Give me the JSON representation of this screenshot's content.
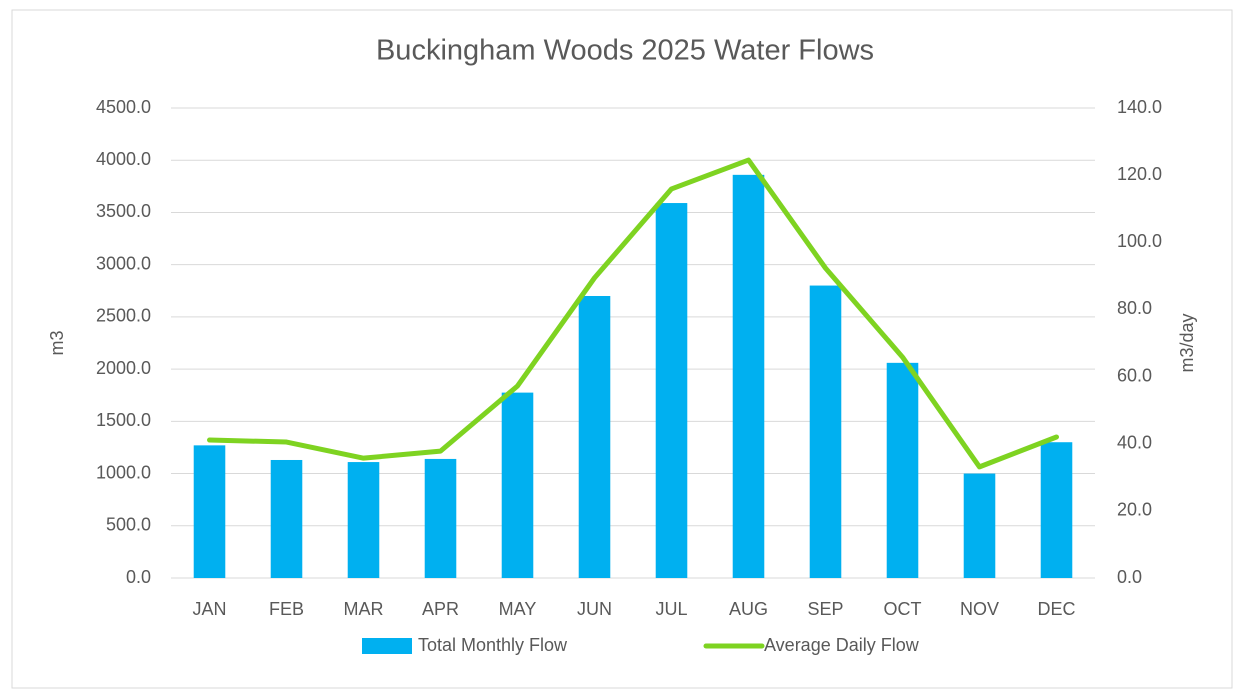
{
  "chart_data": {
    "type": "bar_line",
    "title": "Buckingham Woods 2025 Water Flows",
    "y_label": "m3",
    "y2_label": "m3/day",
    "categories": [
      "JAN",
      "FEB",
      "MAR",
      "APR",
      "MAY",
      "JUN",
      "JUL",
      "AUG",
      "SEP",
      "OCT",
      "NOV",
      "DEC"
    ],
    "series": [
      {
        "name": "Total Monthly Flow",
        "type": "bar",
        "color": "#00b0f0",
        "axis": "y",
        "values": [
          1270,
          1130,
          1110,
          1140,
          1775,
          2700,
          3590,
          3860,
          2800,
          2060,
          1000,
          1300
        ]
      },
      {
        "name": "Average Daily Flow",
        "type": "line",
        "color": "#7ed321",
        "axis": "y2",
        "values": [
          41.1,
          40.5,
          35.7,
          37.8,
          57.2,
          89.4,
          115.9,
          124.5,
          92.3,
          65.8,
          33.1,
          42.0
        ]
      }
    ],
    "ylim": [
      0,
      4500
    ],
    "yticks": [
      {
        "value": 0,
        "label": "0.0"
      },
      {
        "value": 500,
        "label": "500.0"
      },
      {
        "value": 1000,
        "label": "1000.0"
      },
      {
        "value": 1500,
        "label": "1500.0"
      },
      {
        "value": 2000,
        "label": "2000.0"
      },
      {
        "value": 2500,
        "label": "2500.0"
      },
      {
        "value": 3000,
        "label": "3000.0"
      },
      {
        "value": 3500,
        "label": "3500.0"
      },
      {
        "value": 4000,
        "label": "4000.0"
      },
      {
        "value": 4500,
        "label": "4500.0"
      }
    ],
    "y2lim": [
      0,
      140
    ],
    "y2ticks": [
      {
        "value": 0,
        "label": "0.0"
      },
      {
        "value": 20,
        "label": "20.0"
      },
      {
        "value": 40,
        "label": "40.0"
      },
      {
        "value": 60,
        "label": "60.0"
      },
      {
        "value": 80,
        "label": "80.0"
      },
      {
        "value": 100,
        "label": "100.0"
      },
      {
        "value": 120,
        "label": "120.0"
      },
      {
        "value": 140,
        "label": "140.0"
      }
    ],
    "grid": true,
    "legend": "bottom"
  }
}
